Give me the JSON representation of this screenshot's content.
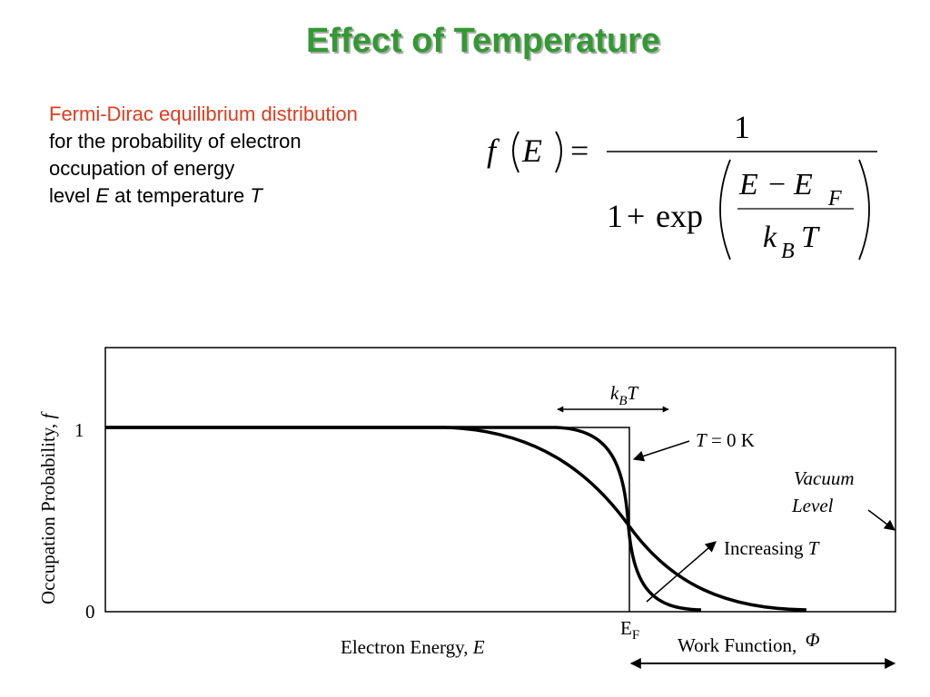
{
  "slide": {
    "title": "Effect of Temperature",
    "description": {
      "highlight": "Fermi-Dirac equilibrium distribution",
      "line2": "for the probability of electron",
      "line3": "occupation of energy",
      "line4_prefix": "level ",
      "line4_var_E": "E",
      "line4_mid": " at temperature ",
      "line4_var_T": "T"
    }
  },
  "equation": {
    "lhs_f": "f",
    "lhs_E": "E",
    "equals": "=",
    "numerator": "1",
    "denominator_one": "1",
    "plus": "+",
    "exp": "exp",
    "inner_E": "E",
    "minus": "−",
    "inner_EF": "E",
    "inner_F_sub": "F",
    "inner_k": "k",
    "inner_B_sub": "B",
    "inner_T": "T"
  },
  "chart": {
    "y_axis_label": "Occupation Probability, ",
    "y_axis_label_var": "f",
    "y_tick_1": "1",
    "y_tick_0": "0",
    "x_axis_label": "Electron Energy, ",
    "x_axis_label_var": "E",
    "fermi_level_E": "E",
    "fermi_level_sub": "F",
    "kbt_k": "k",
    "kbt_sub": "B",
    "kbt_T": "T",
    "t0_var": "T",
    "t0_rest": " = 0 K",
    "vacuum_line1": "Vacuum",
    "vacuum_line2": "Level",
    "increasing_text": "Increasing ",
    "increasing_var": "T",
    "work_function_text": "Work Function, ",
    "work_function_var": "Φ"
  }
}
